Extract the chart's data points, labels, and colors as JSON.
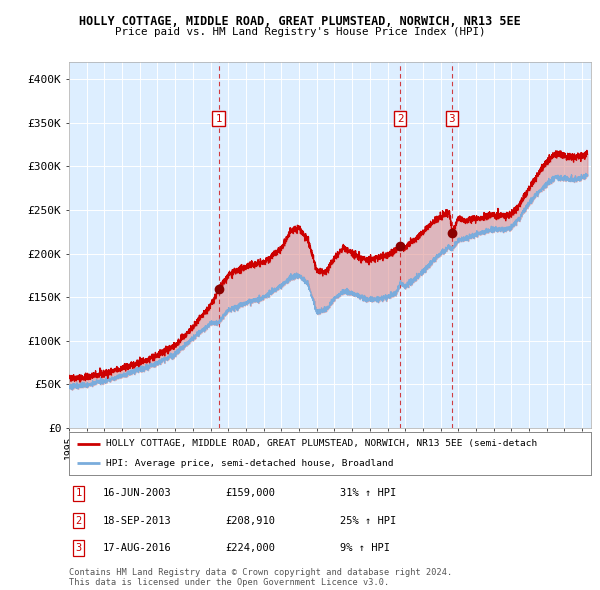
{
  "title1": "HOLLY COTTAGE, MIDDLE ROAD, GREAT PLUMSTEAD, NORWICH, NR13 5EE",
  "title2": "Price paid vs. HM Land Registry's House Price Index (HPI)",
  "legend_property": "HOLLY COTTAGE, MIDDLE ROAD, GREAT PLUMSTEAD, NORWICH, NR13 5EE (semi-detach",
  "legend_hpi": "HPI: Average price, semi-detached house, Broadland",
  "property_color": "#cc0000",
  "hpi_color": "#7aacdc",
  "fill_property_color": "#dd8888",
  "fill_hpi_color": "#aaccee",
  "background_color": "#ddeeff",
  "sale_events": [
    {
      "label": "1",
      "date_year": 2003.46,
      "price": 159000
    },
    {
      "label": "2",
      "date_year": 2013.72,
      "price": 208910
    },
    {
      "label": "3",
      "date_year": 2016.63,
      "price": 224000
    }
  ],
  "table_rows": [
    {
      "num": "1",
      "date": "16-JUN-2003",
      "price": "£159,000",
      "change": "31% ↑ HPI"
    },
    {
      "num": "2",
      "date": "18-SEP-2013",
      "price": "£208,910",
      "change": "25% ↑ HPI"
    },
    {
      "num": "3",
      "date": "17-AUG-2016",
      "price": "£224,000",
      "change": "9% ↑ HPI"
    }
  ],
  "footer": "Contains HM Land Registry data © Crown copyright and database right 2024.\nThis data is licensed under the Open Government Licence v3.0.",
  "ylim": [
    0,
    420000
  ],
  "ytick_labels": [
    "£0",
    "£50K",
    "£100K",
    "£150K",
    "£200K",
    "£250K",
    "£300K",
    "£350K",
    "£400K"
  ],
  "ytick_values": [
    0,
    50000,
    100000,
    150000,
    200000,
    250000,
    300000,
    350000,
    400000
  ],
  "xstart": 1995,
  "xend": 2024.5
}
